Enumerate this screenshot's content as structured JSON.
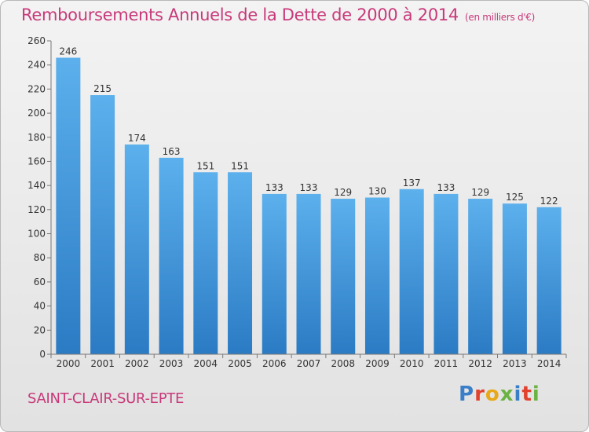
{
  "header": {
    "title": "Remboursements Annuels de la Dette de 2000 à 2014",
    "subtitle": "(en milliers d'€)"
  },
  "commune": "SAINT-CLAIR-SUR-EPTE",
  "logo": {
    "text": "Proxiti",
    "letter_colors": [
      "#3a7fc8",
      "#e0422e",
      "#e8a817",
      "#6bb344",
      "#3a7fc8",
      "#e0422e",
      "#6bb344"
    ]
  },
  "colors": {
    "bar": "#3f95dc",
    "title": "#c8397a"
  },
  "chart_data": {
    "type": "bar",
    "title": "Remboursements Annuels de la Dette de 2000 à 2014",
    "xlabel": "",
    "ylabel": "",
    "categories": [
      "2000",
      "2001",
      "2002",
      "2003",
      "2004",
      "2005",
      "2006",
      "2007",
      "2008",
      "2009",
      "2010",
      "2011",
      "2012",
      "2013",
      "2014"
    ],
    "values": [
      246,
      215,
      174,
      163,
      151,
      151,
      133,
      133,
      129,
      130,
      137,
      133,
      129,
      125,
      122
    ],
    "ylim": [
      0,
      260
    ],
    "yticks": [
      0,
      20,
      40,
      60,
      80,
      100,
      120,
      140,
      160,
      180,
      200,
      220,
      240,
      260
    ],
    "grid": false,
    "legend": "none"
  }
}
